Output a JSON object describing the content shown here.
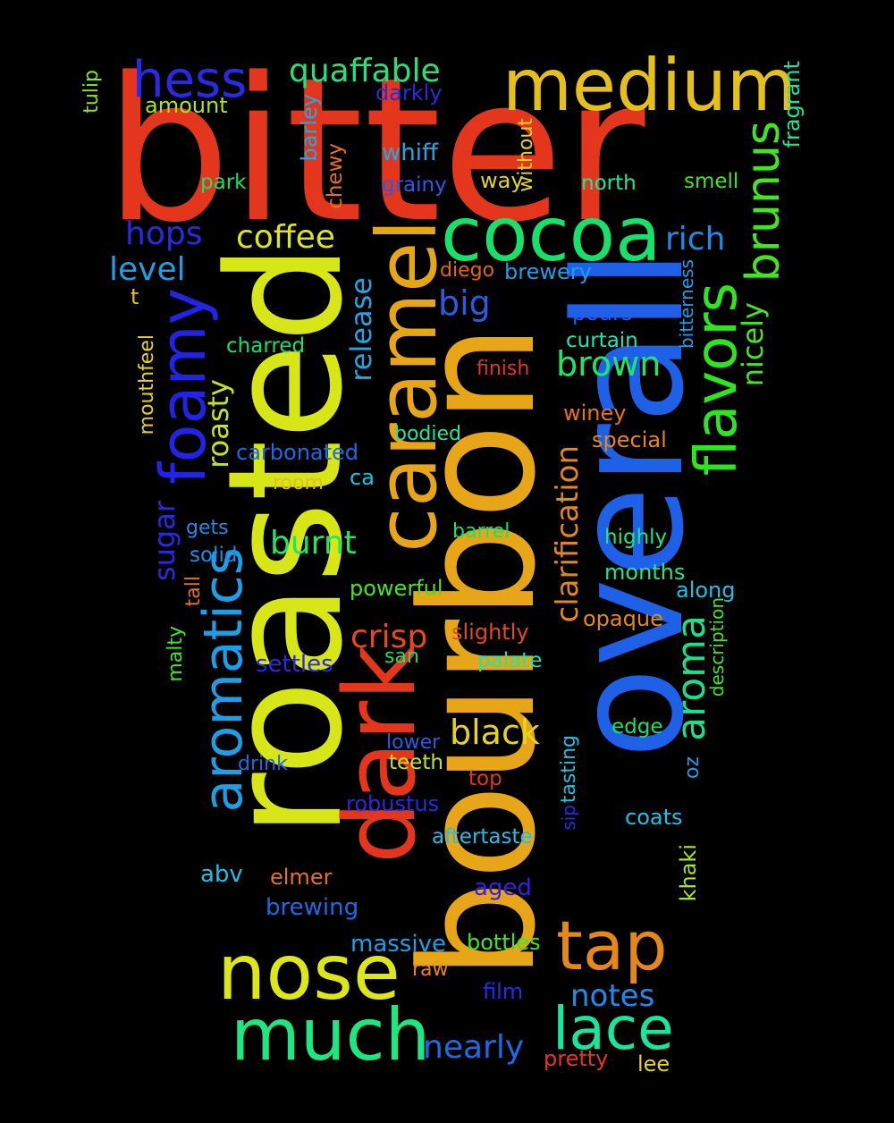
{
  "words": [
    {
      "text": "bitter",
      "color": "#e4361c"
    },
    {
      "text": "roasted",
      "color": "#d6e616"
    },
    {
      "text": "overall",
      "color": "#1e60e6"
    },
    {
      "text": "bourbon",
      "color": "#e6a617"
    },
    {
      "text": "dark",
      "color": "#e4361c"
    },
    {
      "text": "caramel",
      "color": "#e6a617"
    },
    {
      "text": "cocoa",
      "color": "#18e06a"
    },
    {
      "text": "medium",
      "color": "#e6c01a"
    },
    {
      "text": "hess",
      "color": "#2a2ae6"
    },
    {
      "text": "quaffable",
      "color": "#27e07a"
    },
    {
      "text": "foamy",
      "color": "#2323e6"
    },
    {
      "text": "aromatics",
      "color": "#1e9ee6"
    },
    {
      "text": "flavors",
      "color": "#2ee61e"
    },
    {
      "text": "brunus",
      "color": "#43e61e"
    },
    {
      "text": "aroma",
      "color": "#18e08c"
    },
    {
      "text": "nose",
      "color": "#dde617"
    },
    {
      "text": "much",
      "color": "#1ee681"
    },
    {
      "text": "tap",
      "color": "#e6871a"
    },
    {
      "text": "lace",
      "color": "#18e6a0"
    },
    {
      "text": "coffee",
      "color": "#dde617"
    },
    {
      "text": "hops",
      "color": "#2a2ae6"
    },
    {
      "text": "level",
      "color": "#1e9ee6"
    },
    {
      "text": "rich",
      "color": "#1e8be6"
    },
    {
      "text": "big",
      "color": "#2a5ae6"
    },
    {
      "text": "brown",
      "color": "#1ee66b"
    },
    {
      "text": "black",
      "color": "#e6d51a"
    },
    {
      "text": "crisp",
      "color": "#e6491a"
    },
    {
      "text": "burnt",
      "color": "#1ee66b"
    },
    {
      "text": "roasty",
      "color": "#c1e61e"
    },
    {
      "text": "release",
      "color": "#1ea6e6"
    },
    {
      "text": "clarification",
      "color": "#e6871a"
    },
    {
      "text": "sugar",
      "color": "#2a2ae6"
    },
    {
      "text": "notes",
      "color": "#1e8be6"
    },
    {
      "text": "nearly",
      "color": "#1e6ae6"
    },
    {
      "text": "nicely",
      "color": "#43e61e"
    },
    {
      "text": "amount",
      "color": "#a6e61e"
    },
    {
      "text": "darkly",
      "color": "#2a2ae6"
    },
    {
      "text": "whiff",
      "color": "#1eaae6"
    },
    {
      "text": "grainy",
      "color": "#2a5ae6"
    },
    {
      "text": "way",
      "color": "#e6d51a"
    },
    {
      "text": "north",
      "color": "#1ee6a0"
    },
    {
      "text": "smell",
      "color": "#43e61e"
    },
    {
      "text": "park",
      "color": "#18e06a"
    },
    {
      "text": "barley",
      "color": "#1eaae6"
    },
    {
      "text": "chewy",
      "color": "#e6721a"
    },
    {
      "text": "without",
      "color": "#e6d51a"
    },
    {
      "text": "fragrant",
      "color": "#18e6a0"
    },
    {
      "text": "tulip",
      "color": "#8ae61e"
    },
    {
      "text": "diego",
      "color": "#e6621a"
    },
    {
      "text": "brewery",
      "color": "#1e9ee6"
    },
    {
      "text": "bitterness",
      "color": "#1e9ee6"
    },
    {
      "text": "t",
      "color": "#e6c01a"
    },
    {
      "text": "pours",
      "color": "#2a5ae6"
    },
    {
      "text": "charred",
      "color": "#18e06a"
    },
    {
      "text": "curtain",
      "color": "#1ee6b6"
    },
    {
      "text": "mouthfeel",
      "color": "#e6d51a"
    },
    {
      "text": "finish",
      "color": "#e6361c"
    },
    {
      "text": "winey",
      "color": "#e6721a"
    },
    {
      "text": "bodied",
      "color": "#1ee6a0"
    },
    {
      "text": "special",
      "color": "#e6871a"
    },
    {
      "text": "carbonated",
      "color": "#1e6ae6"
    },
    {
      "text": "room",
      "color": "#e6c01a"
    },
    {
      "text": "ca",
      "color": "#1ec0e6"
    },
    {
      "text": "gets",
      "color": "#1e8be6"
    },
    {
      "text": "barrel",
      "color": "#18e06a"
    },
    {
      "text": "highly",
      "color": "#1ee681"
    },
    {
      "text": "solid",
      "color": "#1e8be6"
    },
    {
      "text": "months",
      "color": "#1ee681"
    },
    {
      "text": "along",
      "color": "#1ec0e6"
    },
    {
      "text": "tall",
      "color": "#e6721a"
    },
    {
      "text": "powerful",
      "color": "#43e61e"
    },
    {
      "text": "opaque",
      "color": "#e6871a"
    },
    {
      "text": "description",
      "color": "#43e61e"
    },
    {
      "text": "malty",
      "color": "#43e61e"
    },
    {
      "text": "slightly",
      "color": "#e6491a"
    },
    {
      "text": "settles",
      "color": "#2a2ae6"
    },
    {
      "text": "san",
      "color": "#18e06a"
    },
    {
      "text": "palate",
      "color": "#1ee6a0"
    },
    {
      "text": "edge",
      "color": "#18e06a"
    },
    {
      "text": "oz",
      "color": "#1e9ee6"
    },
    {
      "text": "lower",
      "color": "#2a5ae6"
    },
    {
      "text": "drink",
      "color": "#1e6ae6"
    },
    {
      "text": "teeth",
      "color": "#c1e61e"
    },
    {
      "text": "tasting",
      "color": "#1ec0e6"
    },
    {
      "text": "top",
      "color": "#e6361c"
    },
    {
      "text": "robustus",
      "color": "#2a2ae6"
    },
    {
      "text": "sip",
      "color": "#2a2ae6"
    },
    {
      "text": "coats",
      "color": "#1ec0e6"
    },
    {
      "text": "khaki",
      "color": "#a6e61e"
    },
    {
      "text": "aftertaste",
      "color": "#1ec0e6"
    },
    {
      "text": "abv",
      "color": "#1ec0e6"
    },
    {
      "text": "elmer",
      "color": "#e6721a"
    },
    {
      "text": "aged",
      "color": "#3a1ee6"
    },
    {
      "text": "brewing",
      "color": "#1e6ae6"
    },
    {
      "text": "massive",
      "color": "#1e9ee6"
    },
    {
      "text": "bottles",
      "color": "#43e61e"
    },
    {
      "text": "raw",
      "color": "#e6871a"
    },
    {
      "text": "film",
      "color": "#2a2ae6"
    },
    {
      "text": "pretty",
      "color": "#e6361c"
    },
    {
      "text": "lee",
      "color": "#e6d51a"
    }
  ]
}
